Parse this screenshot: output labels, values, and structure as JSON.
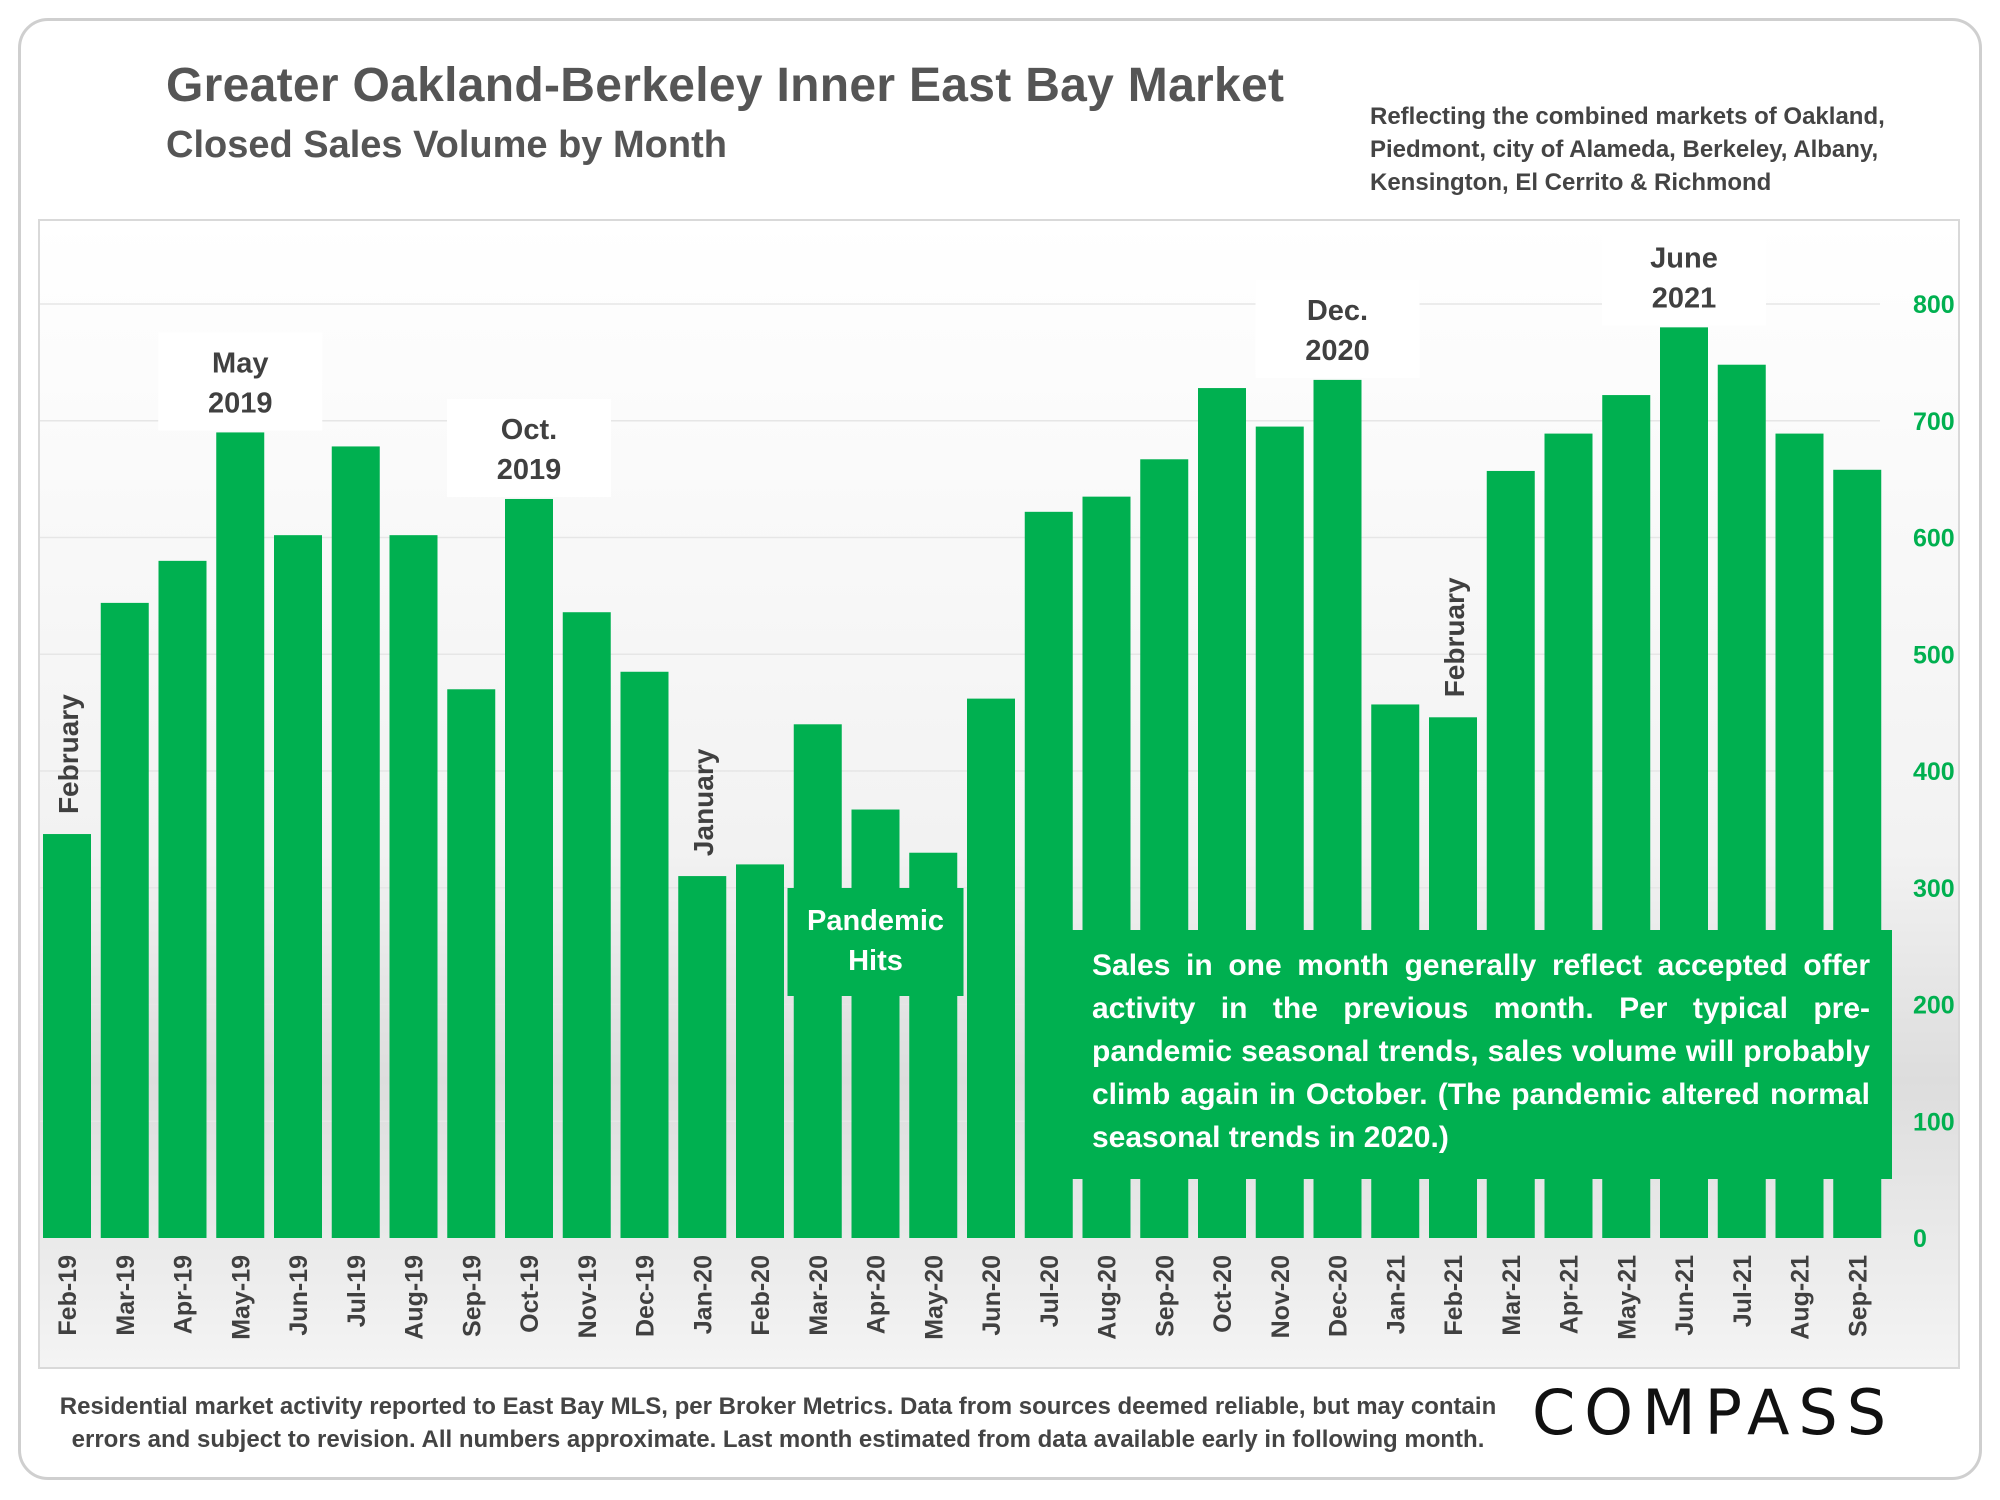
{
  "header": {
    "title": "Greater Oakland-Berkeley Inner East Bay Market",
    "subtitle": "Closed Sales Volume by Month",
    "note": "Reflecting the combined markets of Oakland, Piedmont, city of Alameda, Berkeley, Albany, Kensington, El Cerrito & Richmond"
  },
  "callout": "Sales in one month generally reflect accepted offer activity in the previous month. Per typical pre-pandemic seasonal trends, sales volume will probably climb again in October. (The pandemic altered normal seasonal trends in 2020.)",
  "footer": "Residential market activity reported to East Bay MLS, per Broker Metrics. Data from sources deemed reliable, but may contain errors and subject to revision. All numbers approximate. Last month estimated from data available early in following month.",
  "logo": "COMPASS",
  "colors": {
    "bar": "#00b050",
    "axis_label": "#00b050",
    "text": "#404040"
  },
  "chart_data": {
    "type": "bar",
    "title": "Greater Oakland-Berkeley Inner East Bay Market",
    "subtitle": "Closed Sales Volume by Month",
    "categories": [
      "Feb-19",
      "Mar-19",
      "Apr-19",
      "May-19",
      "Jun-19",
      "Jul-19",
      "Aug-19",
      "Sep-19",
      "Oct-19",
      "Nov-19",
      "Dec-19",
      "Jan-20",
      "Feb-20",
      "Mar-20",
      "Apr-20",
      "May-20",
      "Jun-20",
      "Jul-20",
      "Aug-20",
      "Sep-20",
      "Oct-20",
      "Nov-20",
      "Dec-20",
      "Jan-21",
      "Feb-21",
      "Mar-21",
      "Apr-21",
      "May-21",
      "Jun-21",
      "Jul-21",
      "Aug-21",
      "Sep-21"
    ],
    "values": [
      346,
      544,
      580,
      690,
      602,
      678,
      602,
      470,
      633,
      536,
      485,
      310,
      320,
      440,
      367,
      330,
      462,
      622,
      635,
      667,
      728,
      695,
      735,
      457,
      446,
      657,
      689,
      722,
      780,
      748,
      689,
      658
    ],
    "ylim": [
      0,
      800
    ],
    "yticks": [
      0,
      100,
      200,
      300,
      400,
      500,
      600,
      700,
      800
    ],
    "y_axis_side": "right",
    "grid": true,
    "legend": "none",
    "annotations": [
      {
        "text": "February",
        "bar": 0,
        "orientation": "vertical"
      },
      {
        "text": "May 2019",
        "lines": [
          "May",
          "2019"
        ],
        "bar": 3
      },
      {
        "text": "Oct. 2019",
        "lines": [
          "Oct.",
          "2019"
        ],
        "bar": 8
      },
      {
        "text": "January",
        "bar": 11,
        "orientation": "vertical"
      },
      {
        "text": "Pandemic Hits",
        "lines": [
          "Pandemic",
          "Hits"
        ],
        "bar": 14,
        "boxed": true
      },
      {
        "text": "Dec. 2020",
        "lines": [
          "Dec.",
          "2020"
        ],
        "bar": 22
      },
      {
        "text": "February",
        "bar": 24,
        "orientation": "vertical"
      },
      {
        "text": "June 2021",
        "lines": [
          "June",
          "2021"
        ],
        "bar": 28
      }
    ]
  }
}
